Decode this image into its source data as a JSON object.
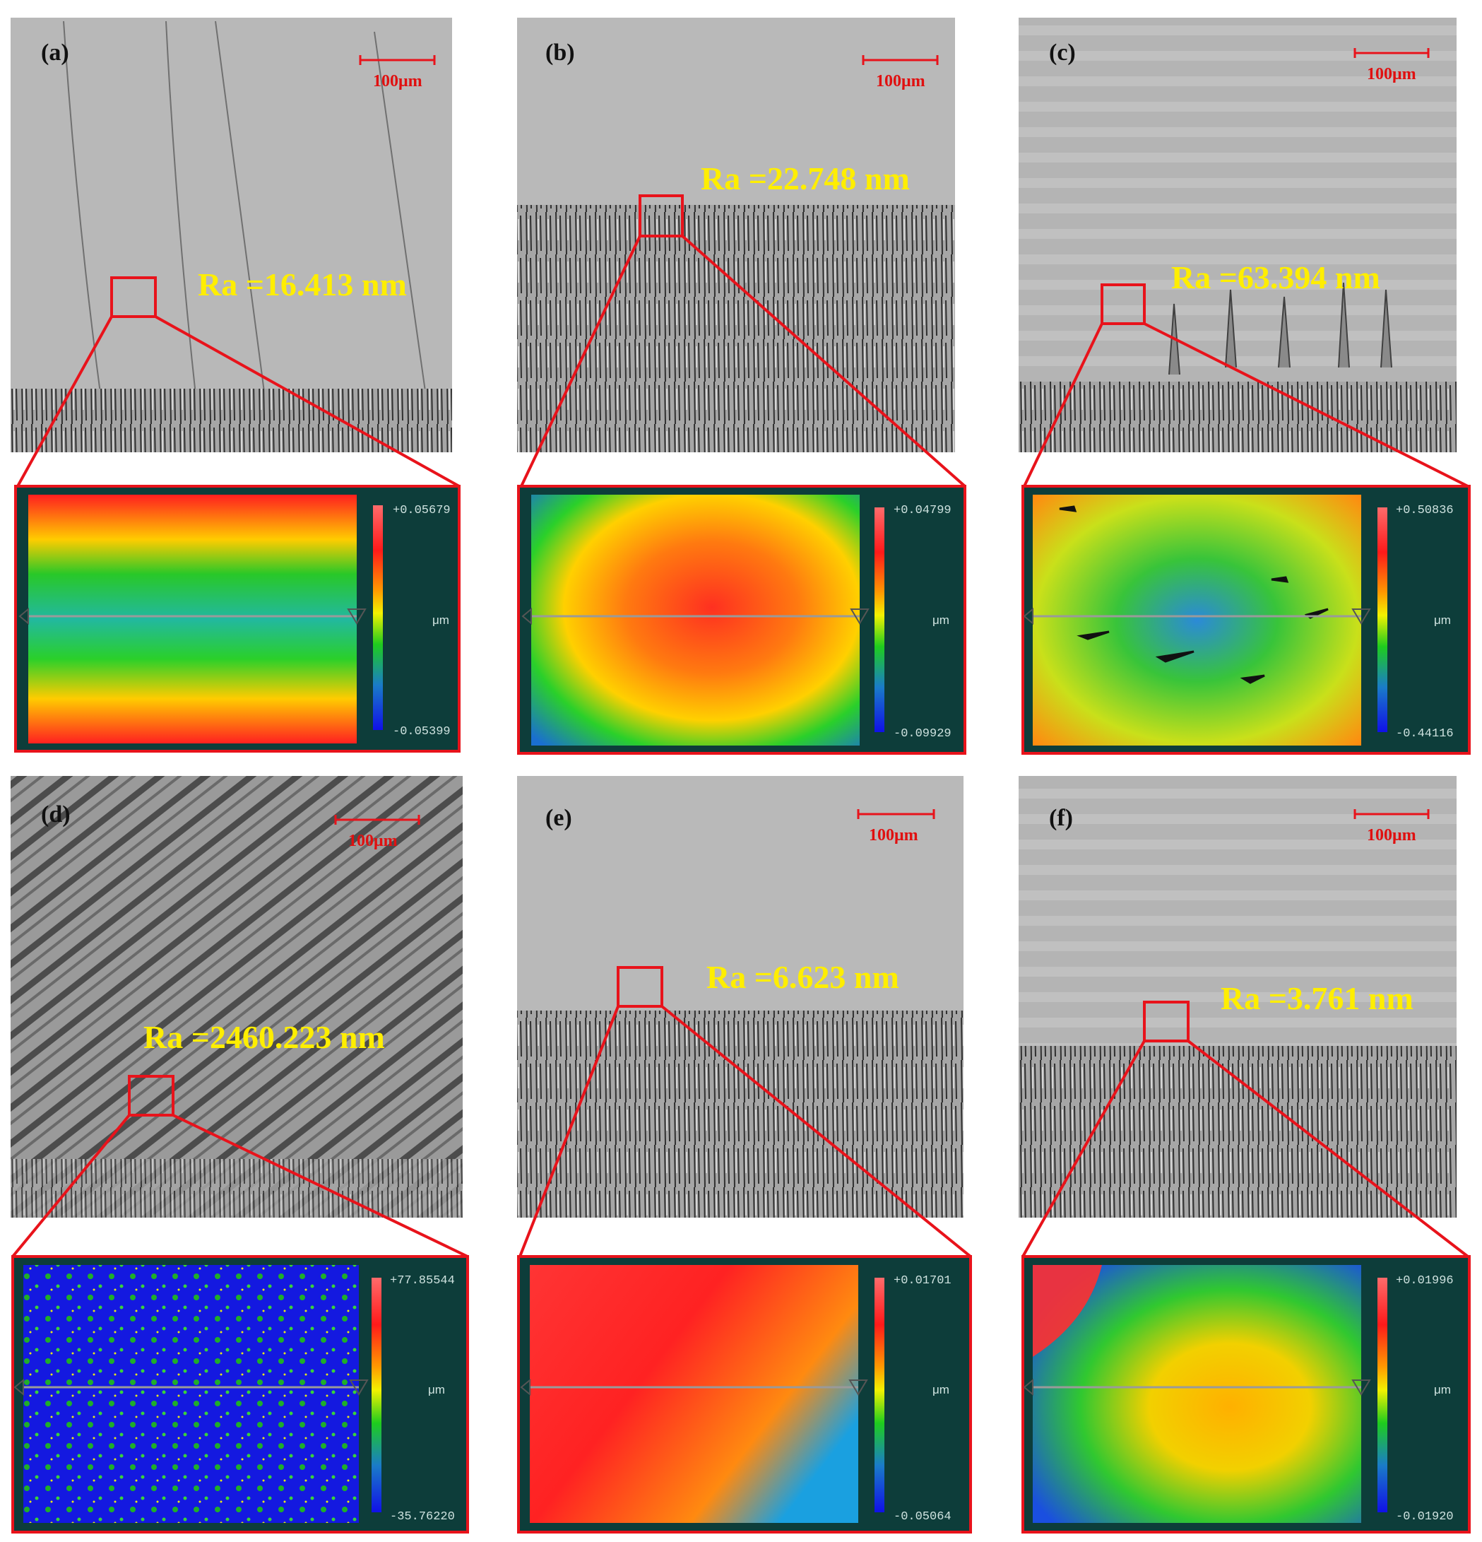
{
  "panels": [
    {
      "label": "(a)",
      "scale": "100μm",
      "ra": "Ra =16.413 nm",
      "cbar_max": "+0.05679",
      "cbar_min": "-0.05399",
      "unit": "μm"
    },
    {
      "label": "(b)",
      "scale": "100μm",
      "ra": "Ra =22.748 nm",
      "cbar_max": "+0.04799",
      "cbar_min": "-0.09929",
      "unit": "μm"
    },
    {
      "label": "(c)",
      "scale": "100μm",
      "ra": "Ra =63.394 nm",
      "cbar_max": "+0.50836",
      "cbar_min": "-0.44116",
      "unit": "μm"
    },
    {
      "label": "(d)",
      "scale": "100μm",
      "ra": "Ra =2460.223 nm",
      "cbar_max": "+77.85544",
      "cbar_min": "-35.76220",
      "unit": "μm"
    },
    {
      "label": "(e)",
      "scale": "100μm",
      "ra": "Ra =6.623 nm",
      "cbar_max": "+0.01701",
      "cbar_min": "-0.05064",
      "unit": "μm"
    },
    {
      "label": "(f)",
      "scale": "100μm",
      "ra": "Ra =3.761 nm",
      "cbar_max": "+0.01996",
      "cbar_min": "-0.01920",
      "unit": "μm"
    }
  ],
  "colors": {
    "highlight": "#e8131b",
    "annotation": "#ffee00",
    "colorbar_bg": "#0d3d3a",
    "micrograph": "#b9b9b9"
  }
}
